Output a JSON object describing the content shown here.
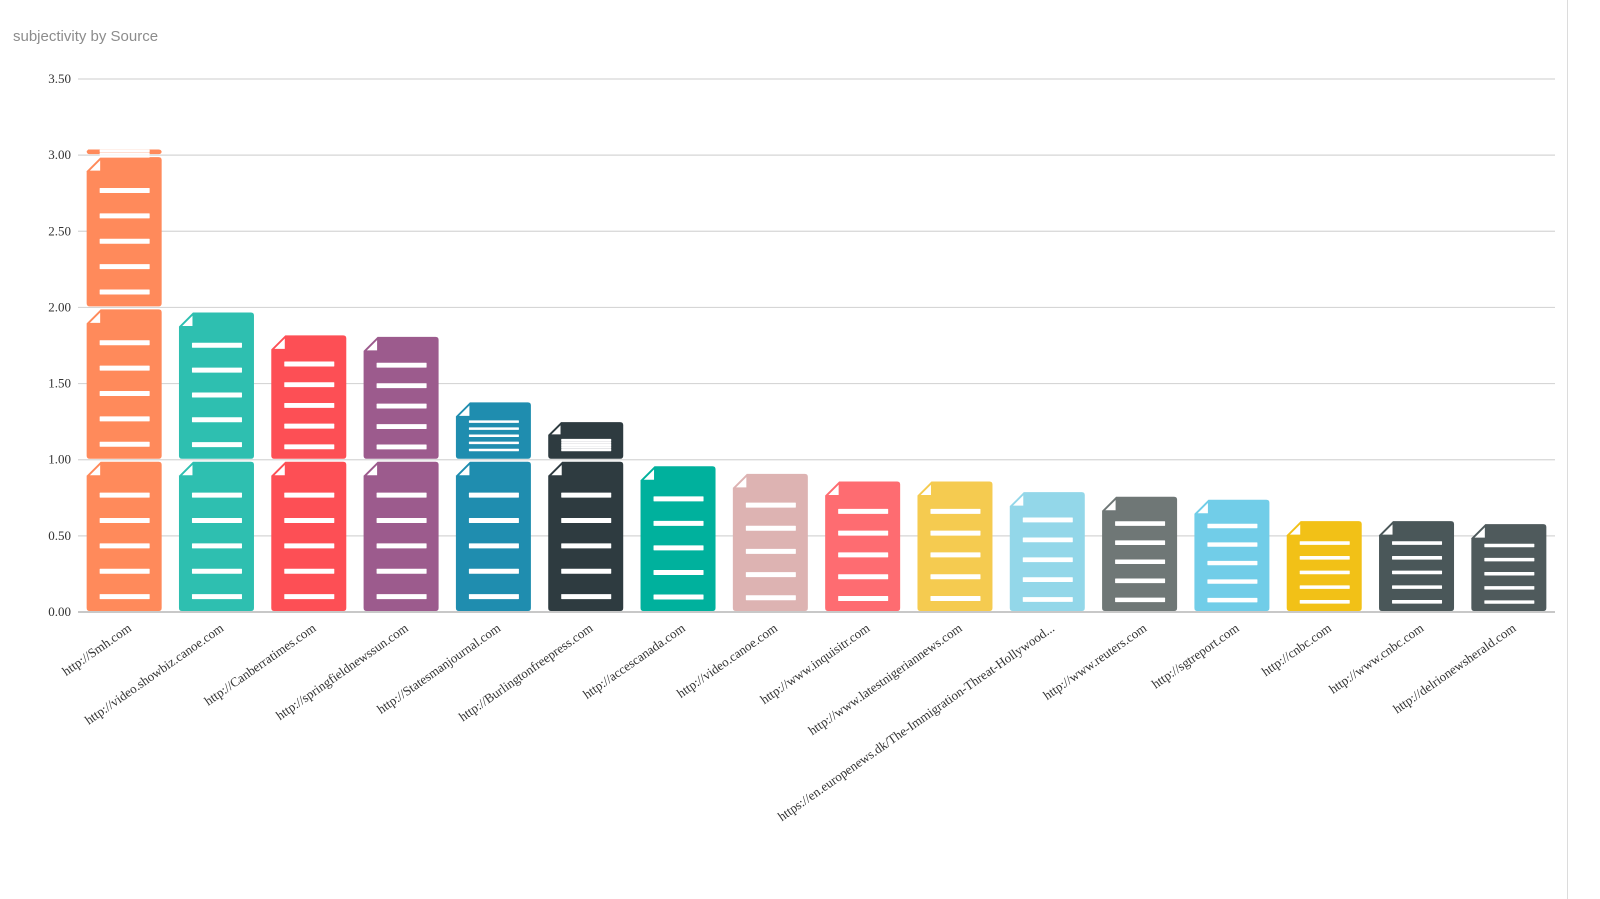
{
  "chart_title": "subjectivity by Source",
  "chart_data": {
    "type": "bar",
    "title": "subjectivity by Source",
    "xlabel": "",
    "ylabel": "",
    "ylim": [
      0,
      3.5
    ],
    "grid": true,
    "y_ticks": [
      "0.00",
      "0.50",
      "1.00",
      "1.50",
      "2.00",
      "2.50",
      "3.00",
      "3.50"
    ],
    "categories": [
      "http://Smh.com",
      "http://video.showbiz.canoe.com",
      "http://Canberratimes.com",
      "http://springfieldnewssun.com",
      "http://Statesmanjournal.com",
      "http://Burlingtonfreepress.com",
      "http://accescanada.com",
      "http://video.canoe.com",
      "http://www.inquisitr.com",
      "http://www.latestnigeriannews.com",
      "https://en.europenews.dk/The-Immigration-Threat-Hollywood...",
      "http://www.reuters.com",
      "http://sgtreport.com",
      "http://cnbc.com",
      "http://www.cnbc.com",
      "http://delrionewsherald.com"
    ],
    "values": [
      3.05,
      1.98,
      1.83,
      1.82,
      1.39,
      1.26,
      0.97,
      0.92,
      0.87,
      0.87,
      0.8,
      0.77,
      0.75,
      0.61,
      0.61,
      0.59
    ],
    "colors": [
      "#FF8A5B",
      "#2EBFB0",
      "#FD4F55",
      "#9C5B8D",
      "#1F8DAF",
      "#2E3B40",
      "#00B19D",
      "#DDB3B2",
      "#FE6C71",
      "#F5CB50",
      "#93D7E9",
      "#6F7776",
      "#71CDE8",
      "#F2C117",
      "#4A5759",
      "#4F5A5C"
    ],
    "icon": "document-icon",
    "unit_per_icon": 1.0
  }
}
